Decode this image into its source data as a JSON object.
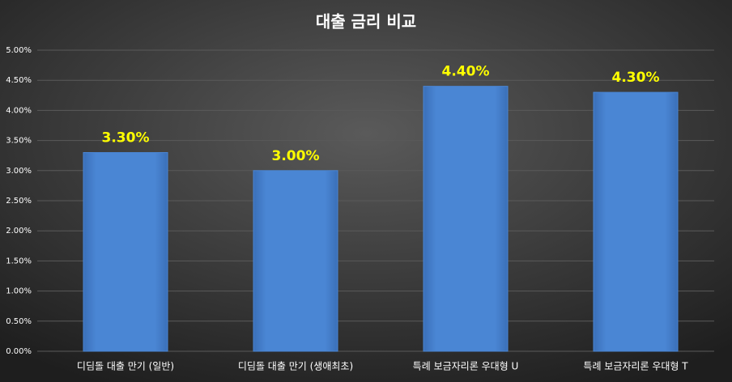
{
  "chart_data": {
    "type": "bar",
    "title": "대출 금리 비교",
    "categories": [
      "디딤돌 대출 만기 (일반)",
      "디딤돌 대출 만기 (생애최초)",
      "특례 보금자리론 우대형 U",
      "특례 보금자리론 우대형 T"
    ],
    "values": [
      3.3,
      3.0,
      4.4,
      4.3
    ],
    "value_labels": [
      "3.30%",
      "3.00%",
      "4.40%",
      "4.30%"
    ],
    "color": "#4a86d4",
    "ylim": [
      0,
      5
    ],
    "yticks": [
      {
        "value": 0,
        "label": "0.00%"
      },
      {
        "value": 0.5,
        "label": "0.50%"
      },
      {
        "value": 1,
        "label": "1.00%"
      },
      {
        "value": 1.5,
        "label": "1.50%"
      },
      {
        "value": 2,
        "label": "2.00%"
      },
      {
        "value": 2.5,
        "label": "2.50%"
      },
      {
        "value": 3,
        "label": "3.00%"
      },
      {
        "value": 3.5,
        "label": "3.50%"
      },
      {
        "value": 4,
        "label": "4.00%"
      },
      {
        "value": 4.5,
        "label": "4.50%"
      },
      {
        "value": 5,
        "label": "5.00%"
      }
    ],
    "grid": true
  }
}
